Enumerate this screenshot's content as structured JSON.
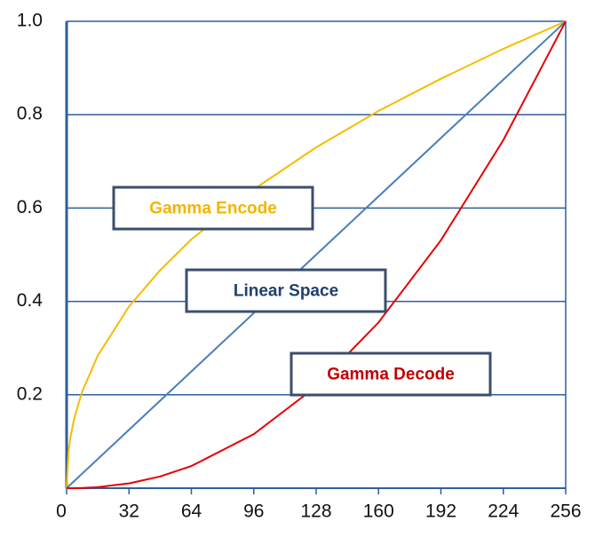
{
  "chart_data": {
    "type": "line",
    "x": [
      0,
      1,
      2,
      4,
      8,
      16,
      32,
      48,
      64,
      96,
      128,
      160,
      192,
      224,
      256
    ],
    "series": [
      {
        "name": "Gamma Encode",
        "color": "#f5bd00",
        "label_color": "#f5b400",
        "values": [
          0,
          0.08,
          0.11,
          0.151,
          0.207,
          0.284,
          0.389,
          0.467,
          0.533,
          0.64,
          0.73,
          0.808,
          0.877,
          0.941,
          1
        ]
      },
      {
        "name": "Linear Space",
        "color": "#4a7ebb",
        "label_color": "#1f3f6e",
        "values": [
          0,
          0.0039,
          0.0078,
          0.0156,
          0.03125,
          0.0625,
          0.125,
          0.1875,
          0.25,
          0.375,
          0.5,
          0.625,
          0.75,
          0.875,
          1
        ]
      },
      {
        "name": "Gamma Decode",
        "color": "#e60000",
        "label_color": "#c00000",
        "values": [
          0,
          0,
          0,
          0.0001,
          0.0005,
          0.0022,
          0.0103,
          0.0251,
          0.0474,
          0.1156,
          0.2176,
          0.355,
          0.531,
          0.7455,
          1
        ]
      }
    ],
    "xlim": [
      0,
      256
    ],
    "xticks": [
      0,
      32,
      64,
      96,
      128,
      160,
      192,
      224,
      256
    ],
    "ylim": [
      0,
      1
    ],
    "yticks": [
      0.2,
      0.4,
      0.6,
      0.8,
      {
        "value": 1,
        "label": "1.0"
      }
    ],
    "grid": true,
    "grid_color": "#2e5e9e",
    "box_border_color": "#3b4f6b"
  }
}
